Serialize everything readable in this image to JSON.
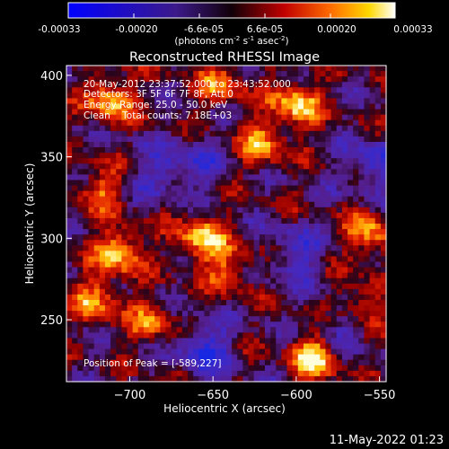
{
  "colorbar": {
    "ticks": [
      "-0.00033",
      "-0.00020",
      "-6.6e-05",
      "6.6e-05",
      "0.00020",
      "0.00033"
    ],
    "unit_parts": [
      "(photons cm",
      "-2",
      " s",
      "-1",
      " asec",
      "-2",
      ")"
    ],
    "range": [
      -0.00033,
      0.00033
    ]
  },
  "annotations": {
    "time_range": "20-May-2012 23:37:52.000 to 23:43:52.000",
    "detectors": "Detectors: 3F 5F 6F 7F 8F, Att 0",
    "energy": "Energy Range: 25.0 - 50.0 keV",
    "clean": "Clean    Total counts: 7.18E+03",
    "peak": "Position of Peak = [-589,227]"
  },
  "footer": {
    "timestamp": "11-May-2022 01:23"
  },
  "chart_data": {
    "type": "heatmap",
    "title": "Reconstructed RHESSI Image",
    "xlabel": "Heliocentric X (arcsec)",
    "ylabel": "Heliocentric Y (arcsec)",
    "xlim": [
      -738,
      -546
    ],
    "ylim": [
      212,
      406
    ],
    "xticks": [
      -700,
      -650,
      -600,
      -550
    ],
    "yticks": [
      250,
      300,
      350,
      400
    ],
    "xtick_labels": [
      "−700",
      "−650",
      "−600",
      "−550"
    ],
    "ytick_labels": [
      "250",
      "300",
      "350",
      "400"
    ],
    "colormap": "red-temperature with blue negative",
    "grid": false,
    "peak_position": [
      -589,
      227
    ],
    "hot_regions": [
      {
        "x": -712,
        "y": 385,
        "level": 0.85
      },
      {
        "x": -600,
        "y": 383,
        "level": 0.9
      },
      {
        "x": -620,
        "y": 358,
        "level": 0.7
      },
      {
        "x": -718,
        "y": 330,
        "level": 0.6
      },
      {
        "x": -706,
        "y": 292,
        "level": 0.9
      },
      {
        "x": -720,
        "y": 262,
        "level": 0.7
      },
      {
        "x": -658,
        "y": 300,
        "level": 0.85
      },
      {
        "x": -640,
        "y": 282,
        "level": 0.6
      },
      {
        "x": -687,
        "y": 248,
        "level": 0.55
      },
      {
        "x": -589,
        "y": 227,
        "level": 1.0
      },
      {
        "x": -556,
        "y": 302,
        "level": 0.75
      },
      {
        "x": -562,
        "y": 260,
        "level": 0.55
      },
      {
        "x": -645,
        "y": 395,
        "level": 0.6
      }
    ],
    "cold_regions": [
      {
        "x": -655,
        "y": 232,
        "level": 0.8
      },
      {
        "x": -600,
        "y": 290,
        "level": 0.6
      },
      {
        "x": -660,
        "y": 345,
        "level": 0.5
      },
      {
        "x": -553,
        "y": 345,
        "level": 0.7
      },
      {
        "x": -575,
        "y": 245,
        "level": 0.45
      },
      {
        "x": -683,
        "y": 340,
        "level": 0.45
      }
    ]
  }
}
